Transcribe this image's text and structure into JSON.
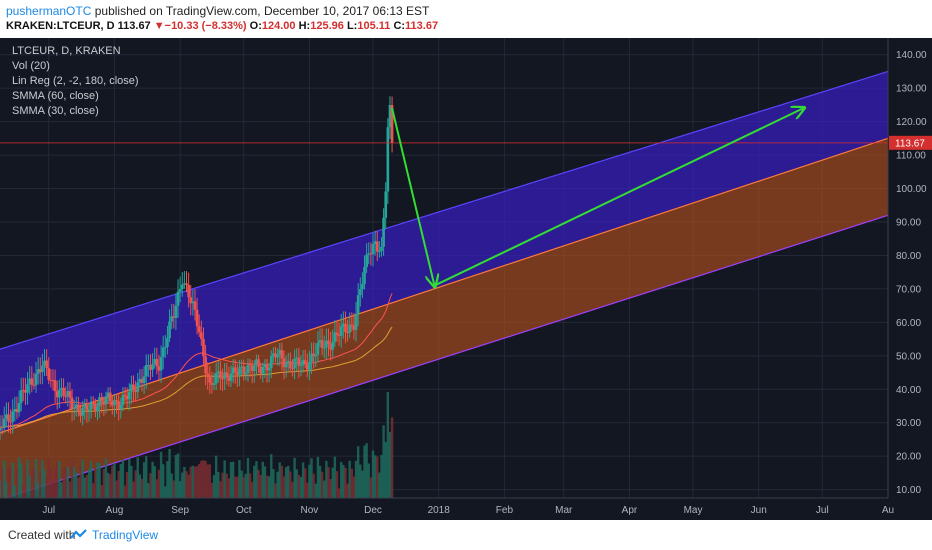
{
  "header": {
    "author": "pushermanOTC",
    "published_text": "published on TradingView.com, December 10, 2017 06:13 EST",
    "symbol": "KRAKEN:LTCEUR, D",
    "last": "113.67",
    "change_arrow": "▼",
    "change": "−10.33 (−8.33%)",
    "o_label": "O:",
    "o_value": "124.00",
    "h_label": "H:",
    "h_value": "125.96",
    "l_label": "L:",
    "l_value": "105.11",
    "c_label": "C:",
    "c_value": "113.67"
  },
  "legend": {
    "title": "LTCEUR, D, KRAKEN",
    "items": [
      "Vol (20)",
      "Lin Reg (2, -2, 180, close)",
      "SMMA (60, close)",
      "SMMA (30, close)"
    ]
  },
  "footer": {
    "created_with": "Created with",
    "brand": "TradingView"
  },
  "colors": {
    "background": "#131722",
    "channel_upper": "#3b1fd6",
    "channel_lower": "#b5511d",
    "arrow": "#33dd33",
    "up_candle": "#26a69a",
    "down_candle": "#ef5350",
    "price_line": "#d32f2f"
  },
  "chart_data": {
    "type": "candlestick",
    "y_axis": {
      "ticks": [
        "140.00",
        "130.00",
        "120.00",
        "110.00",
        "100.00",
        "90.00",
        "80.00",
        "70.00",
        "60.00",
        "50.00",
        "40.00",
        "30.00",
        "20.00",
        "10.00"
      ],
      "range": [
        7.5,
        145
      ]
    },
    "x_axis": {
      "ticks": [
        {
          "label": "Jul",
          "date": "2017-07-01"
        },
        {
          "label": "Aug",
          "date": "2017-08-01"
        },
        {
          "label": "Sep",
          "date": "2017-09-01"
        },
        {
          "label": "Oct",
          "date": "2017-10-01"
        },
        {
          "label": "Nov",
          "date": "2017-11-01"
        },
        {
          "label": "Dec",
          "date": "2017-12-01"
        },
        {
          "label": "2018",
          "date": "2018-01-01"
        },
        {
          "label": "Feb",
          "date": "2018-02-01"
        },
        {
          "label": "Mar",
          "date": "2018-03-01"
        },
        {
          "label": "Apr",
          "date": "2018-04-01"
        },
        {
          "label": "May",
          "date": "2018-05-01"
        },
        {
          "label": "Jun",
          "date": "2018-06-01"
        },
        {
          "label": "Jul",
          "date": "2018-07-01"
        },
        {
          "label": "Au",
          "date": "2018-08-01"
        }
      ],
      "range": [
        "2017-06-08",
        "2018-08-01"
      ]
    },
    "last_price_label": "113.67",
    "last_price": 113.67,
    "price_keypoints": [
      [
        "2017-06-08",
        28
      ],
      [
        "2017-06-16",
        35
      ],
      [
        "2017-06-22",
        42
      ],
      [
        "2017-06-28",
        47
      ],
      [
        "2017-07-05",
        40
      ],
      [
        "2017-07-12",
        36
      ],
      [
        "2017-07-18",
        33
      ],
      [
        "2017-07-25",
        37
      ],
      [
        "2017-08-01",
        36
      ],
      [
        "2017-08-08",
        38
      ],
      [
        "2017-08-15",
        45
      ],
      [
        "2017-08-22",
        48
      ],
      [
        "2017-08-29",
        62
      ],
      [
        "2017-09-02",
        74
      ],
      [
        "2017-09-06",
        66
      ],
      [
        "2017-09-10",
        58
      ],
      [
        "2017-09-15",
        40
      ],
      [
        "2017-09-20",
        45
      ],
      [
        "2017-09-26",
        44
      ],
      [
        "2017-10-02",
        47
      ],
      [
        "2017-10-09",
        46
      ],
      [
        "2017-10-16",
        50
      ],
      [
        "2017-10-22",
        48
      ],
      [
        "2017-10-29",
        47
      ],
      [
        "2017-11-05",
        52
      ],
      [
        "2017-11-10",
        54
      ],
      [
        "2017-11-16",
        57
      ],
      [
        "2017-11-22",
        60
      ],
      [
        "2017-11-26",
        72
      ],
      [
        "2017-11-29",
        82
      ],
      [
        "2017-12-02",
        84
      ],
      [
        "2017-12-05",
        80
      ],
      [
        "2017-12-07",
        100
      ],
      [
        "2017-12-08",
        118
      ],
      [
        "2017-12-09",
        124
      ],
      [
        "2017-12-10",
        113.67
      ]
    ],
    "channel": {
      "upper_top": [
        [
          "2017-06-08",
          52
        ],
        [
          "2018-08-01",
          135
        ]
      ],
      "upper_bottom": [
        [
          "2017-06-08",
          27
        ],
        [
          "2018-08-01",
          115
        ]
      ],
      "lower_top": [
        [
          "2017-06-08",
          27
        ],
        [
          "2018-08-01",
          115
        ]
      ],
      "lower_bottom": [
        [
          "2017-06-08",
          7
        ],
        [
          "2018-08-01",
          92
        ]
      ]
    },
    "arrows": [
      {
        "from": [
          "2017-12-10",
          124
        ],
        "to": [
          "2017-12-30",
          71
        ]
      },
      {
        "from": [
          "2017-12-30",
          71
        ],
        "to": [
          "2018-06-22",
          124
        ]
      }
    ]
  }
}
